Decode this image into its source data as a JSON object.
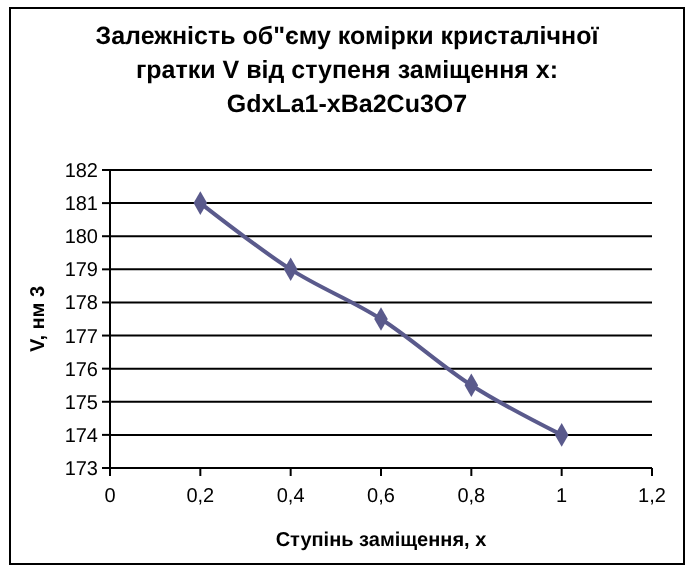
{
  "chart_data": {
    "type": "line",
    "title": "Залежність об\"єму комірки кристалічної гратки V від ступеня заміщення х: GdxLa1-xBa2Cu3O7",
    "xlabel": "Ступінь заміщення,  х",
    "ylabel": "V, нм 3",
    "x": [
      0.2,
      0.4,
      0.6,
      0.8,
      1
    ],
    "series": [
      {
        "color": "#5a5a8c",
        "values": [
          181,
          179,
          177.5,
          175.5,
          174
        ]
      }
    ],
    "xlim": [
      0,
      1.2
    ],
    "xticks": [
      0,
      {
        "value": 0.2,
        "label": "0,2"
      },
      {
        "value": 0.4,
        "label": "0,4"
      },
      {
        "value": 0.6,
        "label": "0,6"
      },
      {
        "value": 0.8,
        "label": "0,8"
      },
      1,
      {
        "value": 1.2,
        "label": "1,2"
      }
    ],
    "ylim": [
      173,
      182
    ],
    "yticks": [
      173,
      174,
      175,
      176,
      177,
      178,
      179,
      180,
      181,
      182
    ],
    "grid": "y",
    "marker": "diamond",
    "line_style": "solid"
  }
}
